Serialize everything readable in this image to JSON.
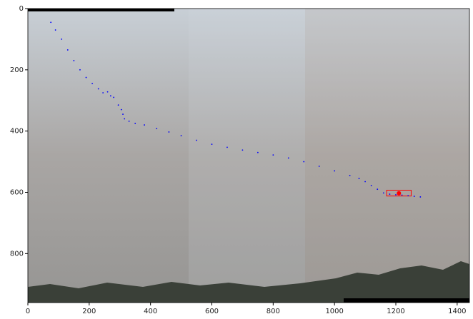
{
  "chart_data": {
    "type": "scatter",
    "xlim": [
      0,
      1440
    ],
    "ylim": [
      960,
      0
    ],
    "xticks": [
      0,
      200,
      400,
      600,
      800,
      1000,
      1200,
      1400
    ],
    "yticks": [
      0,
      200,
      400,
      600,
      800
    ],
    "series": [
      {
        "color": "#0000ff",
        "x": [
          75,
          90,
          110,
          130,
          150,
          170,
          190,
          210,
          230,
          245,
          260,
          270,
          280,
          295,
          305,
          310,
          315,
          330,
          350,
          380,
          420,
          460,
          500,
          550,
          600,
          650,
          700,
          750,
          800,
          850,
          900,
          950,
          1000,
          1050,
          1080,
          1100,
          1120,
          1140,
          1160,
          1180,
          1200,
          1220,
          1240,
          1260,
          1280
        ],
        "values": [
          45,
          70,
          100,
          135,
          170,
          200,
          225,
          245,
          262,
          275,
          272,
          285,
          290,
          315,
          330,
          345,
          360,
          368,
          375,
          380,
          392,
          403,
          415,
          430,
          443,
          453,
          462,
          470,
          478,
          488,
          500,
          515,
          530,
          545,
          555,
          565,
          578,
          590,
          602,
          606,
          608,
          609,
          611,
          613,
          615
        ]
      },
      {
        "color": "#ff0000",
        "x": [
          1210
        ],
        "values": [
          603
        ]
      }
    ],
    "box": {
      "color": "#ff0000",
      "x": [
        1170,
        1250
      ],
      "y": [
        593,
        612
      ]
    }
  }
}
